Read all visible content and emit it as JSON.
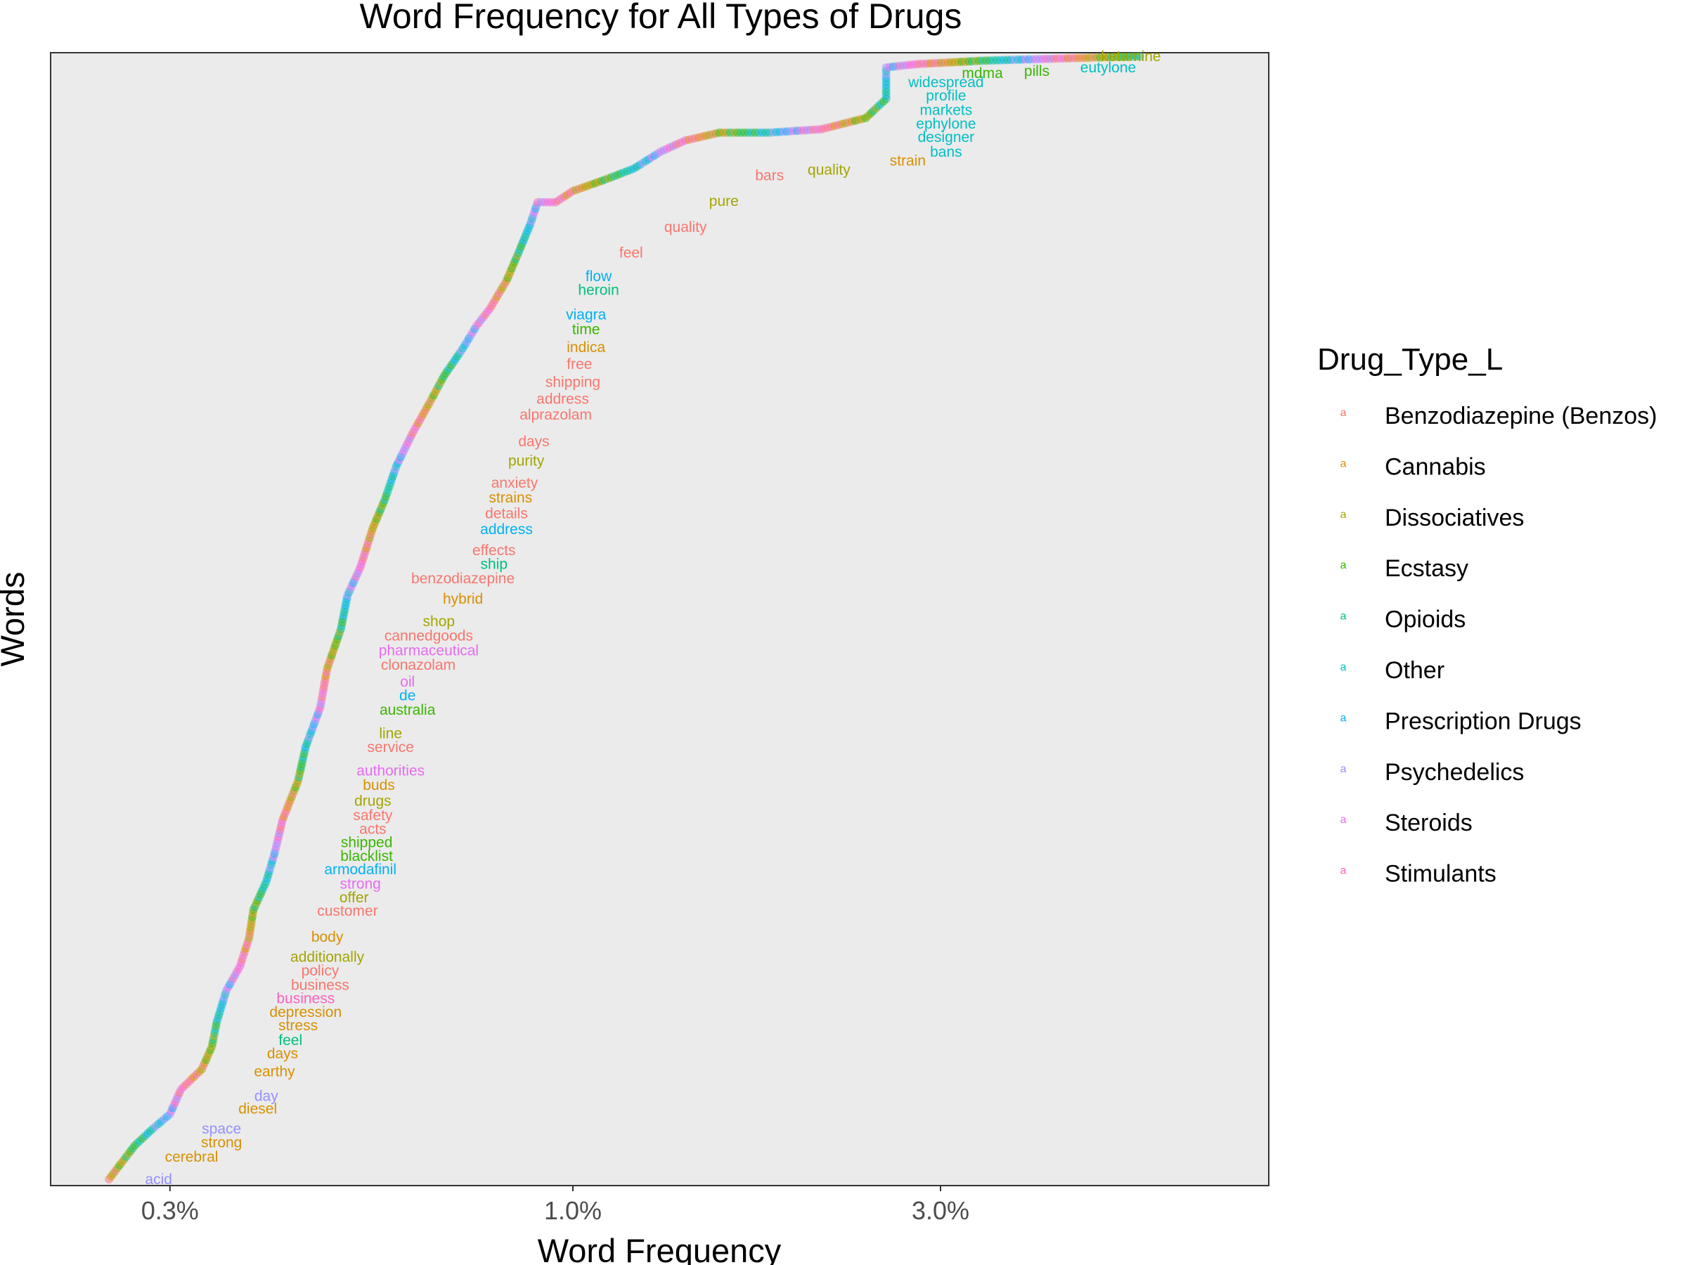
{
  "chart_data": {
    "type": "scatter",
    "title": "Word Frequency for All Types of Drugs",
    "xlabel": "Word Frequency",
    "ylabel": "Words",
    "x_scale": "log10",
    "xlim": [
      0.21,
      8.0
    ],
    "x_ticks": [
      {
        "value": 0.3,
        "label": "0.3%"
      },
      {
        "value": 1.0,
        "label": "1.0%"
      },
      {
        "value": 3.0,
        "label": "3.0%"
      }
    ],
    "grid": false,
    "legend": {
      "title": "Drug_Type_L",
      "position": "right",
      "key_glyph": "a",
      "entries": [
        {
          "name": "Benzodiazepine (Benzos)",
          "color": "#F8766D"
        },
        {
          "name": "Cannabis",
          "color": "#D89000"
        },
        {
          "name": "Dissociatives",
          "color": "#A3A500"
        },
        {
          "name": "Ecstasy",
          "color": "#39B600"
        },
        {
          "name": "Opioids",
          "color": "#00BF7D"
        },
        {
          "name": "Other",
          "color": "#00BFC4"
        },
        {
          "name": "Prescription Drugs",
          "color": "#00B0F6"
        },
        {
          "name": "Psychedelics",
          "color": "#9590FF"
        },
        {
          "name": "Steroids",
          "color": "#E76BF3"
        },
        {
          "name": "Stimulants",
          "color": "#FF62BC"
        }
      ]
    },
    "point_curve": [
      [
        0.25,
        0.0
      ],
      [
        0.27,
        0.03
      ],
      [
        0.285,
        0.045
      ],
      [
        0.3,
        0.058
      ],
      [
        0.31,
        0.08
      ],
      [
        0.33,
        0.098
      ],
      [
        0.34,
        0.118
      ],
      [
        0.345,
        0.14
      ],
      [
        0.355,
        0.168
      ],
      [
        0.37,
        0.19
      ],
      [
        0.38,
        0.215
      ],
      [
        0.385,
        0.24
      ],
      [
        0.4,
        0.265
      ],
      [
        0.41,
        0.29
      ],
      [
        0.42,
        0.32
      ],
      [
        0.44,
        0.355
      ],
      [
        0.45,
        0.385
      ],
      [
        0.47,
        0.42
      ],
      [
        0.48,
        0.455
      ],
      [
        0.5,
        0.49
      ],
      [
        0.51,
        0.52
      ],
      [
        0.53,
        0.545
      ],
      [
        0.55,
        0.58
      ],
      [
        0.57,
        0.605
      ],
      [
        0.59,
        0.635
      ],
      [
        0.62,
        0.665
      ],
      [
        0.65,
        0.69
      ],
      [
        0.68,
        0.715
      ],
      [
        0.72,
        0.74
      ],
      [
        0.75,
        0.76
      ],
      [
        0.78,
        0.775
      ],
      [
        0.82,
        0.8
      ],
      [
        0.85,
        0.825
      ],
      [
        0.88,
        0.85
      ],
      [
        0.9,
        0.87
      ],
      [
        0.95,
        0.87
      ],
      [
        1.0,
        0.88
      ],
      [
        1.1,
        0.89
      ],
      [
        1.2,
        0.9
      ],
      [
        1.3,
        0.915
      ],
      [
        1.4,
        0.925
      ],
      [
        1.55,
        0.932
      ],
      [
        1.8,
        0.932
      ],
      [
        2.1,
        0.935
      ],
      [
        2.4,
        0.945
      ],
      [
        2.55,
        0.962
      ],
      [
        2.55,
        0.99
      ],
      [
        2.8,
        0.993
      ],
      [
        3.4,
        0.996
      ],
      [
        4.3,
        0.998
      ],
      [
        5.5,
        1.0
      ]
    ],
    "words": [
      {
        "word": "ketamine",
        "x": 5.3,
        "rank": 1.0,
        "type": "Dissociatives"
      },
      {
        "word": "eutylone",
        "x": 4.95,
        "rank": 0.99,
        "type": "Other"
      },
      {
        "word": "pills",
        "x": 4.0,
        "rank": 0.987,
        "type": "Ecstasy"
      },
      {
        "word": "mdma",
        "x": 3.4,
        "rank": 0.985,
        "type": "Ecstasy"
      },
      {
        "word": "widespread",
        "x": 3.05,
        "rank": 0.977,
        "type": "Other"
      },
      {
        "word": "profile",
        "x": 3.05,
        "rank": 0.965,
        "type": "Other"
      },
      {
        "word": "markets",
        "x": 3.05,
        "rank": 0.952,
        "type": "Other"
      },
      {
        "word": "ephylone",
        "x": 3.05,
        "rank": 0.94,
        "type": "Other"
      },
      {
        "word": "designer",
        "x": 3.05,
        "rank": 0.928,
        "type": "Other"
      },
      {
        "word": "bans",
        "x": 3.05,
        "rank": 0.915,
        "type": "Other"
      },
      {
        "word": "strain",
        "x": 2.72,
        "rank": 0.907,
        "type": "Cannabis"
      },
      {
        "word": "quality",
        "x": 2.15,
        "rank": 0.899,
        "type": "Dissociatives"
      },
      {
        "word": "bars",
        "x": 1.8,
        "rank": 0.894,
        "type": "Benzodiazepine (Benzos)"
      },
      {
        "word": "pure",
        "x": 1.57,
        "rank": 0.871,
        "type": "Dissociatives"
      },
      {
        "word": "quality",
        "x": 1.4,
        "rank": 0.848,
        "type": "Benzodiazepine (Benzos)"
      },
      {
        "word": "feel",
        "x": 1.19,
        "rank": 0.825,
        "type": "Benzodiazepine (Benzos)"
      },
      {
        "word": "flow",
        "x": 1.08,
        "rank": 0.804,
        "type": "Prescription Drugs"
      },
      {
        "word": "heroin",
        "x": 1.08,
        "rank": 0.792,
        "type": "Opioids"
      },
      {
        "word": "viagra",
        "x": 1.04,
        "rank": 0.77,
        "type": "Prescription Drugs"
      },
      {
        "word": "time",
        "x": 1.04,
        "rank": 0.757,
        "type": "Ecstasy"
      },
      {
        "word": "indica",
        "x": 1.04,
        "rank": 0.741,
        "type": "Cannabis"
      },
      {
        "word": "free",
        "x": 1.02,
        "rank": 0.726,
        "type": "Benzodiazepine (Benzos)"
      },
      {
        "word": "shipping",
        "x": 1.0,
        "rank": 0.71,
        "type": "Benzodiazepine (Benzos)"
      },
      {
        "word": "address",
        "x": 0.97,
        "rank": 0.695,
        "type": "Benzodiazepine (Benzos)"
      },
      {
        "word": "alprazolam",
        "x": 0.95,
        "rank": 0.681,
        "type": "Benzodiazepine (Benzos)"
      },
      {
        "word": "days",
        "x": 0.89,
        "rank": 0.657,
        "type": "Benzodiazepine (Benzos)"
      },
      {
        "word": "purity",
        "x": 0.87,
        "rank": 0.64,
        "type": "Dissociatives"
      },
      {
        "word": "anxiety",
        "x": 0.84,
        "rank": 0.62,
        "type": "Benzodiazepine (Benzos)"
      },
      {
        "word": "strains",
        "x": 0.83,
        "rank": 0.607,
        "type": "Cannabis"
      },
      {
        "word": "details",
        "x": 0.82,
        "rank": 0.593,
        "type": "Benzodiazepine (Benzos)"
      },
      {
        "word": "address",
        "x": 0.82,
        "rank": 0.579,
        "type": "Prescription Drugs"
      },
      {
        "word": "effects",
        "x": 0.79,
        "rank": 0.56,
        "type": "Benzodiazepine (Benzos)"
      },
      {
        "word": "ship",
        "x": 0.79,
        "rank": 0.548,
        "type": "Opioids"
      },
      {
        "word": "benzodiazepine",
        "x": 0.72,
        "rank": 0.535,
        "type": "Benzodiazepine (Benzos)"
      },
      {
        "word": "hybrid",
        "x": 0.72,
        "rank": 0.517,
        "type": "Cannabis"
      },
      {
        "word": "shop",
        "x": 0.67,
        "rank": 0.497,
        "type": "Dissociatives"
      },
      {
        "word": "cannedgoods",
        "x": 0.65,
        "rank": 0.484,
        "type": "Benzodiazepine (Benzos)"
      },
      {
        "word": "pharmaceutical",
        "x": 0.65,
        "rank": 0.471,
        "type": "Steroids"
      },
      {
        "word": "clonazolam",
        "x": 0.63,
        "rank": 0.458,
        "type": "Benzodiazepine (Benzos)"
      },
      {
        "word": "oil",
        "x": 0.61,
        "rank": 0.443,
        "type": "Steroids"
      },
      {
        "word": "de",
        "x": 0.61,
        "rank": 0.431,
        "type": "Prescription Drugs"
      },
      {
        "word": "australia",
        "x": 0.61,
        "rank": 0.418,
        "type": "Ecstasy"
      },
      {
        "word": "line",
        "x": 0.58,
        "rank": 0.397,
        "type": "Dissociatives"
      },
      {
        "word": "service",
        "x": 0.58,
        "rank": 0.385,
        "type": "Benzodiazepine (Benzos)"
      },
      {
        "word": "authorities",
        "x": 0.58,
        "rank": 0.364,
        "type": "Steroids"
      },
      {
        "word": "buds",
        "x": 0.56,
        "rank": 0.351,
        "type": "Cannabis"
      },
      {
        "word": "drugs",
        "x": 0.55,
        "rank": 0.337,
        "type": "Dissociatives"
      },
      {
        "word": "safety",
        "x": 0.55,
        "rank": 0.324,
        "type": "Benzodiazepine (Benzos)"
      },
      {
        "word": "acts",
        "x": 0.55,
        "rank": 0.312,
        "type": "Benzodiazepine (Benzos)"
      },
      {
        "word": "shipped",
        "x": 0.54,
        "rank": 0.3,
        "type": "Ecstasy"
      },
      {
        "word": "blacklist",
        "x": 0.54,
        "rank": 0.288,
        "type": "Ecstasy"
      },
      {
        "word": "armodafinil",
        "x": 0.53,
        "rank": 0.276,
        "type": "Prescription Drugs"
      },
      {
        "word": "strong",
        "x": 0.53,
        "rank": 0.263,
        "type": "Steroids"
      },
      {
        "word": "offer",
        "x": 0.52,
        "rank": 0.251,
        "type": "Dissociatives"
      },
      {
        "word": "customer",
        "x": 0.51,
        "rank": 0.239,
        "type": "Benzodiazepine (Benzos)"
      },
      {
        "word": "body",
        "x": 0.48,
        "rank": 0.216,
        "type": "Cannabis"
      },
      {
        "word": "additionally",
        "x": 0.48,
        "rank": 0.198,
        "type": "Dissociatives"
      },
      {
        "word": "policy",
        "x": 0.47,
        "rank": 0.186,
        "type": "Benzodiazepine (Benzos)"
      },
      {
        "word": "business",
        "x": 0.47,
        "rank": 0.173,
        "type": "Benzodiazepine (Benzos)"
      },
      {
        "word": "business",
        "x": 0.45,
        "rank": 0.161,
        "type": "Stimulants"
      },
      {
        "word": "depression",
        "x": 0.45,
        "rank": 0.149,
        "type": "Cannabis"
      },
      {
        "word": "stress",
        "x": 0.44,
        "rank": 0.137,
        "type": "Cannabis"
      },
      {
        "word": "feel",
        "x": 0.43,
        "rank": 0.124,
        "type": "Opioids"
      },
      {
        "word": "days",
        "x": 0.42,
        "rank": 0.112,
        "type": "Cannabis"
      },
      {
        "word": "earthy",
        "x": 0.41,
        "rank": 0.096,
        "type": "Cannabis"
      },
      {
        "word": "day",
        "x": 0.4,
        "rank": 0.074,
        "type": "Psychedelics"
      },
      {
        "word": "diesel",
        "x": 0.39,
        "rank": 0.063,
        "type": "Cannabis"
      },
      {
        "word": "space",
        "x": 0.35,
        "rank": 0.045,
        "type": "Psychedelics"
      },
      {
        "word": "strong",
        "x": 0.35,
        "rank": 0.033,
        "type": "Cannabis"
      },
      {
        "word": "cerebral",
        "x": 0.32,
        "rank": 0.02,
        "type": "Cannabis"
      },
      {
        "word": "acid",
        "x": 0.29,
        "rank": 0.0,
        "type": "Psychedelics"
      }
    ]
  }
}
